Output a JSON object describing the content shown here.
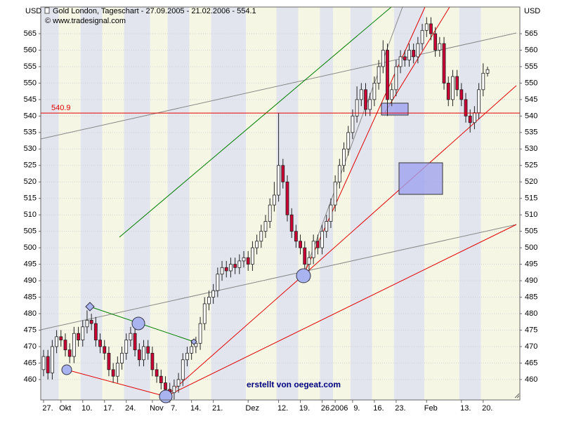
{
  "chart_data": {
    "type": "candlestick",
    "title": "Gold London, Tageschart - 27.09.2005 - 21.02.2006 - 554.1",
    "subtitle": "© www.tradesignal.com",
    "y_label": "USD",
    "annotation": "erstellt von oegeat.com",
    "hline": 540.9,
    "hline_color": "#e00000",
    "up_color": "#ffffff",
    "down_color": "#cc0033",
    "ylim": [
      453.8,
      573.1
    ],
    "yticks": [
      460,
      465,
      470,
      475,
      480,
      485,
      490,
      495,
      500,
      505,
      510,
      515,
      520,
      525,
      530,
      535,
      540,
      545,
      550,
      555,
      560,
      565
    ],
    "categories": [
      "27.",
      null,
      null,
      null,
      "Okt",
      null,
      null,
      null,
      null,
      "10.",
      null,
      null,
      null,
      null,
      "17.",
      null,
      null,
      null,
      null,
      "24.",
      null,
      null,
      null,
      null,
      null,
      "Nov",
      null,
      null,
      null,
      "7.",
      null,
      null,
      null,
      null,
      "14.",
      null,
      null,
      null,
      null,
      "21.",
      null,
      null,
      null,
      null,
      null,
      null,
      null,
      "Dez",
      null,
      null,
      null,
      null,
      null,
      null,
      "12.",
      null,
      null,
      null,
      null,
      "19.",
      null,
      null,
      null,
      null,
      "26.",
      null,
      null,
      "2006",
      null,
      null,
      null,
      "9.",
      null,
      null,
      null,
      null,
      "16.",
      null,
      null,
      null,
      null,
      "23.",
      null,
      null,
      null,
      null,
      null,
      null,
      "Feb",
      null,
      null,
      null,
      null,
      null,
      null,
      null,
      "13.",
      null,
      null,
      null,
      null,
      "20.",
      null
    ],
    "open": [
      463,
      467,
      462,
      470,
      473,
      472,
      469,
      467,
      474,
      472,
      476,
      478,
      477,
      472,
      470,
      468,
      463,
      461,
      465,
      468,
      472,
      474,
      469,
      466,
      470,
      468,
      463,
      461,
      459,
      457,
      456,
      458,
      460,
      466,
      468,
      470,
      471,
      477,
      483,
      485,
      487,
      492,
      494,
      493,
      495,
      494,
      496,
      497,
      495,
      500,
      502,
      505,
      508,
      513,
      516,
      525,
      520,
      510,
      505,
      502,
      500,
      495,
      497,
      502,
      500,
      505,
      508,
      513,
      520,
      525,
      530,
      535,
      540,
      545,
      548,
      542,
      545,
      550,
      555,
      560,
      545,
      548,
      555,
      558,
      557,
      560,
      558,
      562,
      566,
      568,
      565,
      560,
      562,
      550,
      545,
      552,
      548,
      545,
      540,
      538,
      541,
      548,
      553
    ],
    "high": [
      469,
      469,
      472,
      475,
      475,
      474,
      471,
      476,
      476,
      478,
      481,
      480,
      479,
      474,
      472,
      470,
      465,
      467,
      470,
      474,
      476,
      476,
      471,
      472,
      472,
      470,
      465,
      463,
      461,
      459,
      460,
      462,
      468,
      470,
      472,
      473,
      479,
      485,
      487,
      489,
      494,
      496,
      496,
      497,
      497,
      498,
      499,
      499,
      502,
      504,
      507,
      510,
      515,
      520,
      541,
      527,
      522,
      512,
      507,
      504,
      502,
      499,
      504,
      504,
      507,
      510,
      515,
      522,
      527,
      532,
      537,
      542,
      549,
      550,
      550,
      547,
      552,
      557,
      563,
      562,
      550,
      557,
      560,
      560,
      562,
      562,
      564,
      568,
      570,
      570,
      567,
      564,
      564,
      552,
      554,
      554,
      550,
      547,
      542,
      543,
      550,
      556,
      555
    ],
    "low": [
      461,
      460,
      460,
      468,
      470,
      467,
      465,
      465,
      470,
      470,
      474,
      475,
      470,
      468,
      466,
      461,
      459,
      459,
      463,
      466,
      470,
      467,
      464,
      464,
      466,
      461,
      459,
      457,
      455,
      454,
      454,
      456,
      458,
      464,
      466,
      468,
      469,
      475,
      481,
      483,
      485,
      490,
      491,
      491,
      492,
      492,
      494,
      493,
      493,
      498,
      500,
      503,
      506,
      511,
      514,
      518,
      508,
      503,
      500,
      498,
      493,
      490,
      495,
      498,
      498,
      503,
      506,
      511,
      518,
      523,
      528,
      533,
      538,
      543,
      540,
      540,
      543,
      548,
      553,
      540,
      543,
      546,
      553,
      555,
      555,
      556,
      556,
      560,
      564,
      563,
      558,
      558,
      548,
      543,
      543,
      546,
      543,
      538,
      535,
      536,
      539,
      546,
      552
    ],
    "close": [
      467,
      462,
      470,
      473,
      472,
      469,
      467,
      474,
      472,
      476,
      478,
      477,
      472,
      470,
      468,
      463,
      461,
      465,
      468,
      472,
      474,
      469,
      466,
      470,
      468,
      463,
      461,
      459,
      457,
      456,
      458,
      460,
      466,
      468,
      470,
      471,
      477,
      483,
      485,
      487,
      492,
      494,
      493,
      495,
      494,
      496,
      497,
      495,
      500,
      502,
      505,
      508,
      513,
      516,
      525,
      520,
      510,
      505,
      502,
      500,
      495,
      497,
      502,
      500,
      505,
      508,
      513,
      520,
      525,
      530,
      535,
      540,
      545,
      548,
      542,
      545,
      550,
      555,
      560,
      545,
      548,
      555,
      558,
      557,
      560,
      558,
      562,
      566,
      568,
      565,
      560,
      562,
      550,
      545,
      552,
      548,
      545,
      540,
      538,
      541,
      548,
      553,
      554.1
    ]
  }
}
